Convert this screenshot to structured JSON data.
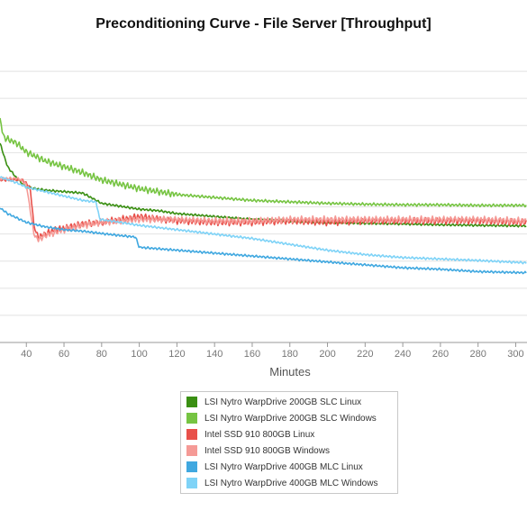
{
  "chart_data": {
    "type": "line",
    "title": "Preconditioning Curve - File Server [Throughput]",
    "xlabel": "Minutes",
    "ylabel": "",
    "xlim": [
      26,
      306
    ],
    "xticks": [
      40,
      60,
      80,
      100,
      120,
      140,
      160,
      180,
      200,
      220,
      240,
      260,
      280,
      300
    ],
    "ylim": [
      0,
      10
    ],
    "grid": true,
    "legend_position": "bottom-center",
    "series": [
      {
        "name": "LSI Nytro WarpDrive 200GB SLC Linux",
        "color": "#3a8f12",
        "points": [
          [
            26,
            6.8
          ],
          [
            30,
            6.0
          ],
          [
            35,
            5.6
          ],
          [
            40,
            5.3
          ],
          [
            45,
            5.25
          ],
          [
            50,
            5.2
          ],
          [
            60,
            5.15
          ],
          [
            70,
            5.1
          ],
          [
            80,
            4.75
          ],
          [
            90,
            4.65
          ],
          [
            100,
            4.55
          ],
          [
            110,
            4.5
          ],
          [
            120,
            4.4
          ],
          [
            130,
            4.35
          ],
          [
            140,
            4.3
          ],
          [
            150,
            4.25
          ],
          [
            160,
            4.2
          ],
          [
            180,
            4.15
          ],
          [
            200,
            4.1
          ],
          [
            220,
            4.07
          ],
          [
            240,
            4.05
          ],
          [
            260,
            4.02
          ],
          [
            280,
            4.0
          ],
          [
            306,
            3.98
          ]
        ]
      },
      {
        "name": "LSI Nytro WarpDrive 200GB SLC Windows",
        "color": "#76c442",
        "points": [
          [
            26,
            7.6
          ],
          [
            28,
            7.0
          ],
          [
            35,
            6.8
          ],
          [
            40,
            6.5
          ],
          [
            50,
            6.2
          ],
          [
            60,
            6.0
          ],
          [
            70,
            5.8
          ],
          [
            80,
            5.55
          ],
          [
            90,
            5.4
          ],
          [
            100,
            5.25
          ],
          [
            110,
            5.15
          ],
          [
            120,
            5.05
          ],
          [
            130,
            5.0
          ],
          [
            140,
            4.95
          ],
          [
            150,
            4.9
          ],
          [
            160,
            4.85
          ],
          [
            180,
            4.8
          ],
          [
            200,
            4.75
          ],
          [
            220,
            4.72
          ],
          [
            240,
            4.7
          ],
          [
            260,
            4.7
          ],
          [
            280,
            4.68
          ],
          [
            306,
            4.68
          ]
        ]
      },
      {
        "name": "Intel SSD 910 800GB Linux",
        "color": "#e8504a",
        "points": [
          [
            26,
            5.55
          ],
          [
            38,
            5.55
          ],
          [
            42,
            5.3
          ],
          [
            44,
            4.0
          ],
          [
            46,
            3.6
          ],
          [
            50,
            3.7
          ],
          [
            55,
            3.85
          ],
          [
            60,
            3.9
          ],
          [
            70,
            4.05
          ],
          [
            80,
            4.1
          ],
          [
            100,
            4.3
          ],
          [
            120,
            4.15
          ],
          [
            140,
            4.1
          ],
          [
            160,
            4.1
          ],
          [
            180,
            4.15
          ],
          [
            200,
            4.1
          ],
          [
            220,
            4.15
          ],
          [
            240,
            4.15
          ],
          [
            260,
            4.15
          ],
          [
            280,
            4.15
          ],
          [
            306,
            4.1
          ]
        ]
      },
      {
        "name": "Intel SSD 910 800GB Windows",
        "color": "#f59a96",
        "points": [
          [
            26,
            5.6
          ],
          [
            36,
            5.6
          ],
          [
            40,
            5.4
          ],
          [
            44,
            3.7
          ],
          [
            46,
            3.5
          ],
          [
            50,
            3.65
          ],
          [
            60,
            3.85
          ],
          [
            70,
            4.0
          ],
          [
            80,
            4.1
          ],
          [
            100,
            4.2
          ],
          [
            120,
            4.2
          ],
          [
            140,
            4.15
          ],
          [
            160,
            4.15
          ],
          [
            180,
            4.2
          ],
          [
            200,
            4.2
          ],
          [
            220,
            4.2
          ],
          [
            240,
            4.2
          ],
          [
            260,
            4.2
          ],
          [
            280,
            4.2
          ],
          [
            306,
            4.15
          ]
        ]
      },
      {
        "name": "LSI Nytro WarpDrive 400GB MLC Linux",
        "color": "#40a8e0",
        "points": [
          [
            26,
            4.6
          ],
          [
            30,
            4.4
          ],
          [
            40,
            4.1
          ],
          [
            50,
            3.95
          ],
          [
            60,
            3.85
          ],
          [
            70,
            3.8
          ],
          [
            80,
            3.72
          ],
          [
            90,
            3.65
          ],
          [
            98,
            3.6
          ],
          [
            100,
            3.25
          ],
          [
            110,
            3.2
          ],
          [
            120,
            3.15
          ],
          [
            140,
            3.05
          ],
          [
            160,
            2.95
          ],
          [
            180,
            2.85
          ],
          [
            200,
            2.75
          ],
          [
            220,
            2.65
          ],
          [
            240,
            2.55
          ],
          [
            260,
            2.5
          ],
          [
            280,
            2.42
          ],
          [
            306,
            2.38
          ]
        ]
      },
      {
        "name": "LSI Nytro WarpDrive 400GB MLC Windows",
        "color": "#7fd3f7",
        "points": [
          [
            26,
            5.65
          ],
          [
            35,
            5.45
          ],
          [
            40,
            5.3
          ],
          [
            50,
            5.15
          ],
          [
            60,
            5.0
          ],
          [
            70,
            4.85
          ],
          [
            77,
            4.8
          ],
          [
            79,
            4.2
          ],
          [
            85,
            4.15
          ],
          [
            100,
            4.0
          ],
          [
            120,
            3.85
          ],
          [
            140,
            3.7
          ],
          [
            160,
            3.55
          ],
          [
            180,
            3.35
          ],
          [
            200,
            3.15
          ],
          [
            220,
            3.0
          ],
          [
            240,
            2.9
          ],
          [
            260,
            2.85
          ],
          [
            280,
            2.8
          ],
          [
            306,
            2.72
          ]
        ]
      }
    ]
  }
}
